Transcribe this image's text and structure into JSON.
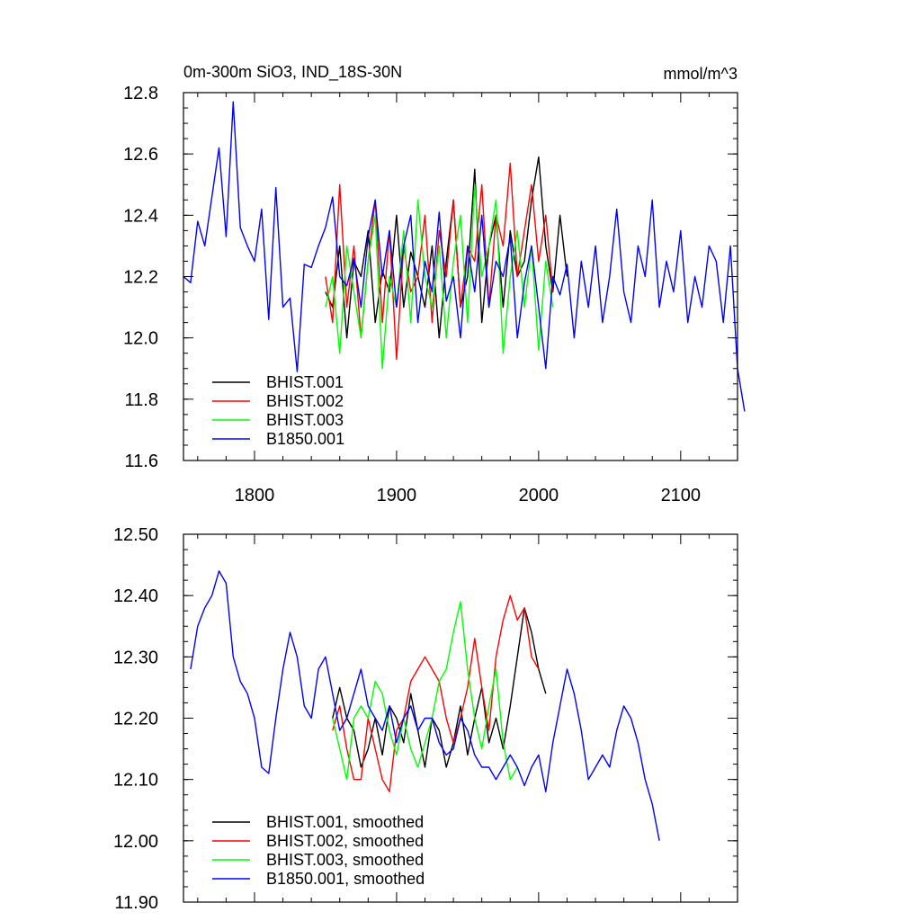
{
  "chart_data": [
    {
      "type": "line",
      "title": "0m-300m SiO3, IND_18S-30N",
      "units": "mmol/m^3",
      "xlabel": "",
      "ylabel": "",
      "xlim": [
        1750,
        2140
      ],
      "ylim": [
        11.6,
        12.8
      ],
      "xticks": [
        1800,
        1900,
        2000,
        2100
      ],
      "xtick_labels": [
        "1800",
        "1900",
        "2000",
        "2100"
      ],
      "yticks": [
        11.6,
        11.8,
        12.0,
        12.2,
        12.4,
        12.6,
        12.8
      ],
      "ytick_labels": [
        "11.6",
        "11.8",
        "12.0",
        "12.2",
        "12.4",
        "12.6",
        "12.8"
      ],
      "legend_position": "bottom-left",
      "series": [
        {
          "name": "BHIST.001",
          "color": "#000000",
          "x_start": 1850,
          "step": 5,
          "values": [
            12.15,
            12.1,
            12.3,
            12.0,
            12.25,
            12.2,
            12.35,
            12.05,
            12.22,
            12.15,
            12.4,
            12.1,
            12.28,
            12.2,
            12.1,
            12.3,
            12.0,
            12.25,
            12.45,
            12.1,
            12.2,
            12.55,
            12.05,
            12.3,
            12.4,
            12.1,
            12.35,
            12.2,
            12.25,
            12.45,
            12.59,
            12.3,
            12.15,
            12.4,
            12.2
          ]
        },
        {
          "name": "BHIST.002",
          "color": "#ff0000",
          "x_start": 1850,
          "step": 5,
          "values": [
            12.2,
            12.05,
            12.5,
            12.1,
            12.3,
            12.0,
            12.25,
            12.45,
            12.05,
            12.35,
            11.93,
            12.3,
            12.15,
            12.2,
            12.4,
            12.05,
            12.35,
            12.2,
            12.45,
            12.1,
            12.3,
            12.25,
            12.5,
            12.1,
            12.4,
            12.3,
            12.57,
            12.2,
            12.35,
            12.5,
            12.25,
            12.4,
            12.15
          ]
        },
        {
          "name": "BHIST.003",
          "color": "#00ff00",
          "x_start": 1850,
          "step": 5,
          "values": [
            12.1,
            12.2,
            11.95,
            12.3,
            12.15,
            12.0,
            12.25,
            12.4,
            11.9,
            12.2,
            12.1,
            12.35,
            12.05,
            12.45,
            12.2,
            12.1,
            12.3,
            12.0,
            12.25,
            12.4,
            12.05,
            12.5,
            12.2,
            12.3,
            12.45,
            11.95,
            12.2,
            12.35,
            12.1,
            12.3,
            11.96,
            12.25,
            12.1
          ]
        },
        {
          "name": "B1850.001",
          "color": "#0000ff",
          "x_start": 1750,
          "step": 5,
          "values": [
            12.2,
            12.18,
            12.38,
            12.3,
            12.46,
            12.62,
            12.33,
            12.77,
            12.36,
            12.3,
            12.25,
            12.42,
            12.06,
            12.49,
            12.1,
            12.13,
            11.89,
            12.24,
            12.23,
            12.3,
            12.36,
            12.46,
            12.2,
            12.17,
            12.26,
            12.1,
            12.33,
            12.45,
            12.2,
            12.35,
            12.1,
            12.3,
            12.4,
            12.05,
            12.25,
            12.15,
            12.41,
            12.12,
            12.2,
            12.0,
            12.3,
            12.15,
            12.4,
            12.1,
            12.25,
            12.2,
            12.33,
            12.0,
            12.18,
            12.3,
            12.1,
            11.9,
            12.2,
            12.14,
            12.24,
            12.0,
            12.25,
            12.1,
            12.3,
            12.05,
            12.2,
            12.42,
            12.15,
            12.05,
            12.3,
            12.2,
            12.45,
            12.1,
            12.25,
            12.15,
            12.35,
            12.05,
            12.2,
            12.1,
            12.3,
            12.25,
            12.05,
            12.3,
            11.9,
            11.76
          ]
        }
      ]
    },
    {
      "type": "line",
      "title": "",
      "xlabel": "",
      "ylabel": "",
      "xlim": [
        1750,
        2140
      ],
      "ylim": [
        11.9,
        12.5
      ],
      "xticks": [
        1800,
        1900,
        2000,
        2100
      ],
      "yticks": [
        11.9,
        12.0,
        12.1,
        12.2,
        12.3,
        12.4,
        12.5
      ],
      "ytick_labels": [
        "11.90",
        "12.00",
        "12.10",
        "12.20",
        "12.30",
        "12.40",
        "12.50"
      ],
      "legend_position": "bottom-left",
      "series": [
        {
          "name": "BHIST.001, smoothed",
          "color": "#000000",
          "x_start": 1855,
          "step": 5,
          "values": [
            12.2,
            12.25,
            12.2,
            12.18,
            12.12,
            12.15,
            12.2,
            12.14,
            12.22,
            12.2,
            12.16,
            12.24,
            12.18,
            12.12,
            12.2,
            12.18,
            12.12,
            12.16,
            12.22,
            12.14,
            12.2,
            12.25,
            12.16,
            12.2,
            12.15,
            12.22,
            12.3,
            12.38,
            12.34,
            12.28,
            12.24
          ]
        },
        {
          "name": "BHIST.002, smoothed",
          "color": "#ff0000",
          "x_start": 1855,
          "step": 5,
          "values": [
            12.18,
            12.22,
            12.15,
            12.1,
            12.1,
            12.2,
            12.15,
            12.1,
            12.08,
            12.18,
            12.2,
            12.26,
            12.28,
            12.3,
            12.28,
            12.26,
            12.2,
            12.16,
            12.2,
            12.25,
            12.33,
            12.25,
            12.18,
            12.3,
            12.36,
            12.4,
            12.36,
            12.38,
            12.3,
            12.28
          ]
        },
        {
          "name": "BHIST.003, smoothed",
          "color": "#00ff00",
          "x_start": 1855,
          "step": 5,
          "values": [
            12.2,
            12.15,
            12.1,
            12.2,
            12.22,
            12.2,
            12.26,
            12.24,
            12.18,
            12.14,
            12.2,
            12.15,
            12.12,
            12.16,
            12.2,
            12.26,
            12.28,
            12.34,
            12.39,
            12.28,
            12.2,
            12.15,
            12.22,
            12.28,
            12.16,
            12.1,
            12.12
          ]
        },
        {
          "name": "B1850.001, smoothed",
          "color": "#0000ff",
          "x_start": 1755,
          "step": 5,
          "values": [
            12.28,
            12.35,
            12.38,
            12.4,
            12.44,
            12.42,
            12.3,
            12.26,
            12.24,
            12.2,
            12.12,
            12.11,
            12.2,
            12.28,
            12.34,
            12.3,
            12.22,
            12.2,
            12.28,
            12.3,
            12.24,
            12.18,
            12.2,
            12.24,
            12.28,
            12.22,
            12.2,
            12.18,
            12.22,
            12.16,
            12.2,
            12.22,
            12.18,
            12.2,
            12.2,
            12.16,
            12.14,
            12.15,
            12.2,
            12.18,
            12.14,
            12.12,
            12.12,
            12.1,
            12.12,
            12.14,
            12.12,
            12.09,
            12.12,
            12.14,
            12.08,
            12.16,
            12.22,
            12.28,
            12.24,
            12.18,
            12.1,
            12.12,
            12.14,
            12.12,
            12.18,
            12.22,
            12.2,
            12.16,
            12.1,
            12.06,
            12.0
          ]
        }
      ]
    }
  ]
}
